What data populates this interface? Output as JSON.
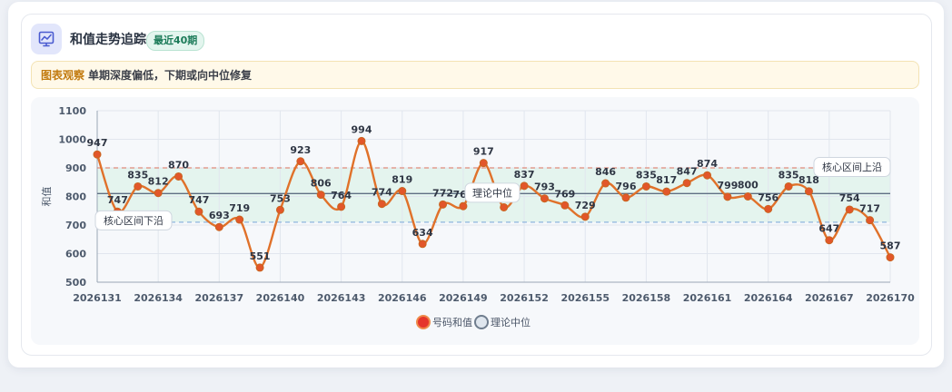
{
  "header": {
    "title": "和值走势追踪",
    "badge": "最近40期",
    "icon": "trend-chart-icon"
  },
  "observation": {
    "label": "图表观察",
    "text": "单期深度偏低，下期或向中位修复"
  },
  "colors": {
    "line": "#e0712a",
    "point": "#e2562a",
    "median_line": "#5f6f84",
    "upper_band_line": "#e08b7b",
    "lower_band_line": "#8fb5dd",
    "band_fill": "#e4f4ee",
    "accent_badge": "#1b7a58",
    "obs_label": "#c27a0e"
  },
  "chart_data": {
    "type": "line",
    "ylabel": "和值",
    "xlabel": "",
    "ylim": [
      500,
      1100
    ],
    "yticks": [
      500,
      600,
      700,
      800,
      900,
      1000,
      1100
    ],
    "grid": true,
    "legend_position": "bottom-center",
    "x": [
      "2026131",
      "2026132",
      "2026133",
      "2026134",
      "2026135",
      "2026136",
      "2026137",
      "2026138",
      "2026139",
      "2026140",
      "2026141",
      "2026142",
      "2026143",
      "2026144",
      "2026145",
      "2026146",
      "2026147",
      "2026148",
      "2026149",
      "2026150",
      "2026151",
      "2026152",
      "2026153",
      "2026154",
      "2026155",
      "2026156",
      "2026157",
      "2026158",
      "2026159",
      "2026160",
      "2026161",
      "2026162",
      "2026163",
      "2026164",
      "2026165",
      "2026166",
      "2026167",
      "2026168",
      "2026169",
      "2026170"
    ],
    "xtick_labels": [
      "2026131",
      "2026134",
      "2026137",
      "2026140",
      "2026143",
      "2026146",
      "2026149",
      "2026152",
      "2026155",
      "2026158",
      "2026161",
      "2026164",
      "2026167",
      "2026170"
    ],
    "series": [
      {
        "name": "号码和值",
        "values": [
          947,
          747,
          835,
          812,
          870,
          747,
          693,
          719,
          551,
          753,
          923,
          806,
          764,
          994,
          774,
          819,
          634,
          772,
          766,
          917,
          762,
          837,
          793,
          769,
          729,
          846,
          796,
          835,
          817,
          847,
          874,
          799,
          800,
          756,
          835,
          818,
          647,
          754,
          717,
          587
        ]
      }
    ],
    "reference_lines": [
      {
        "name": "理论中位",
        "value": 810,
        "label": "理论中位"
      },
      {
        "name": "核心区间上沿",
        "value": 900,
        "label": "核心区间上沿"
      },
      {
        "name": "核心区间下沿",
        "value": 710,
        "label": "核心区间下沿"
      }
    ],
    "legend": [
      {
        "name": "号码和值",
        "marker": "red-filled-circle"
      },
      {
        "name": "理论中位",
        "marker": "gray-circle"
      }
    ]
  }
}
